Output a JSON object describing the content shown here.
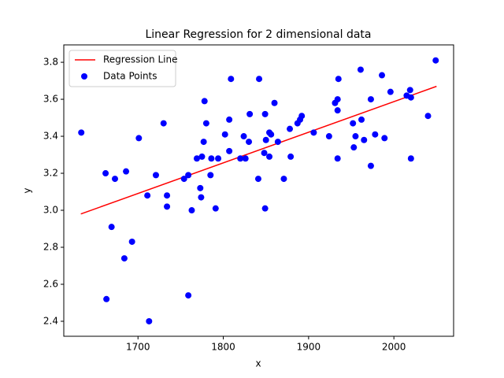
{
  "chart_data": {
    "type": "scatter",
    "title": "Linear Regression for 2 dimensional data",
    "x_label": "x",
    "y_label": "y",
    "xlim": [
      1613,
      2070
    ],
    "ylim": [
      2.319,
      3.894
    ],
    "xticks": [
      1700,
      1800,
      1900,
      2000
    ],
    "yticks": [
      2.4,
      2.6,
      2.8,
      {
        "value": 3,
        "label": "3.0"
      },
      3.2,
      3.4,
      3.6,
      3.8
    ],
    "grid": false,
    "legend": "upper left",
    "series": [
      {
        "name": "Regression Line",
        "type": "line",
        "color": "#ff0000",
        "x": [
          1633,
          2050
        ],
        "values": [
          2.98,
          3.67
        ]
      },
      {
        "name": "Data Points",
        "type": "scatter",
        "color": "#0000ff",
        "x": [
          1633.5,
          1662,
          1673,
          1686,
          1663,
          1669,
          1684,
          1693,
          1701,
          1711,
          1713,
          1721,
          1730,
          1734,
          1734,
          1754,
          1759,
          1759,
          1763,
          1769,
          1773,
          1774,
          1775,
          1777,
          1778,
          1780,
          1785,
          1786,
          1791,
          1794,
          1802,
          1807,
          1807,
          1809,
          1820,
          1824,
          1826,
          1830,
          1831,
          1841,
          1842,
          1848,
          1849,
          1849,
          1850,
          1854,
          1854,
          1856,
          1860,
          1864,
          1871,
          1878,
          1879,
          1887,
          1890,
          1892,
          1906,
          1924,
          1931,
          1934,
          1934,
          1934,
          1935,
          1952,
          1953,
          1955,
          1961,
          1962,
          1965,
          1973,
          1973,
          1978,
          1986,
          1989,
          1996,
          2015,
          2019,
          2020,
          2020,
          2040,
          2049
        ],
        "values": [
          3.42,
          3.2,
          3.17,
          3.21,
          2.52,
          2.91,
          2.74,
          2.83,
          3.39,
          3.08,
          2.4,
          3.19,
          3.47,
          3.08,
          3.02,
          3.17,
          2.54,
          3.19,
          3.0,
          3.28,
          3.12,
          3.07,
          3.29,
          3.37,
          3.59,
          3.47,
          3.19,
          3.28,
          3.01,
          3.28,
          3.41,
          3.49,
          3.32,
          3.71,
          3.28,
          3.4,
          3.28,
          3.37,
          3.52,
          3.17,
          3.71,
          3.31,
          3.52,
          3.01,
          3.38,
          3.42,
          3.29,
          3.41,
          3.58,
          3.37,
          3.17,
          3.44,
          3.29,
          3.47,
          3.49,
          3.51,
          3.42,
          3.4,
          3.58,
          3.6,
          3.54,
          3.28,
          3.71,
          3.47,
          3.34,
          3.4,
          3.76,
          3.49,
          3.38,
          3.6,
          3.24,
          3.41,
          3.73,
          3.39,
          3.64,
          3.62,
          3.65,
          3.61,
          3.28,
          3.51,
          3.81
        ]
      }
    ]
  }
}
